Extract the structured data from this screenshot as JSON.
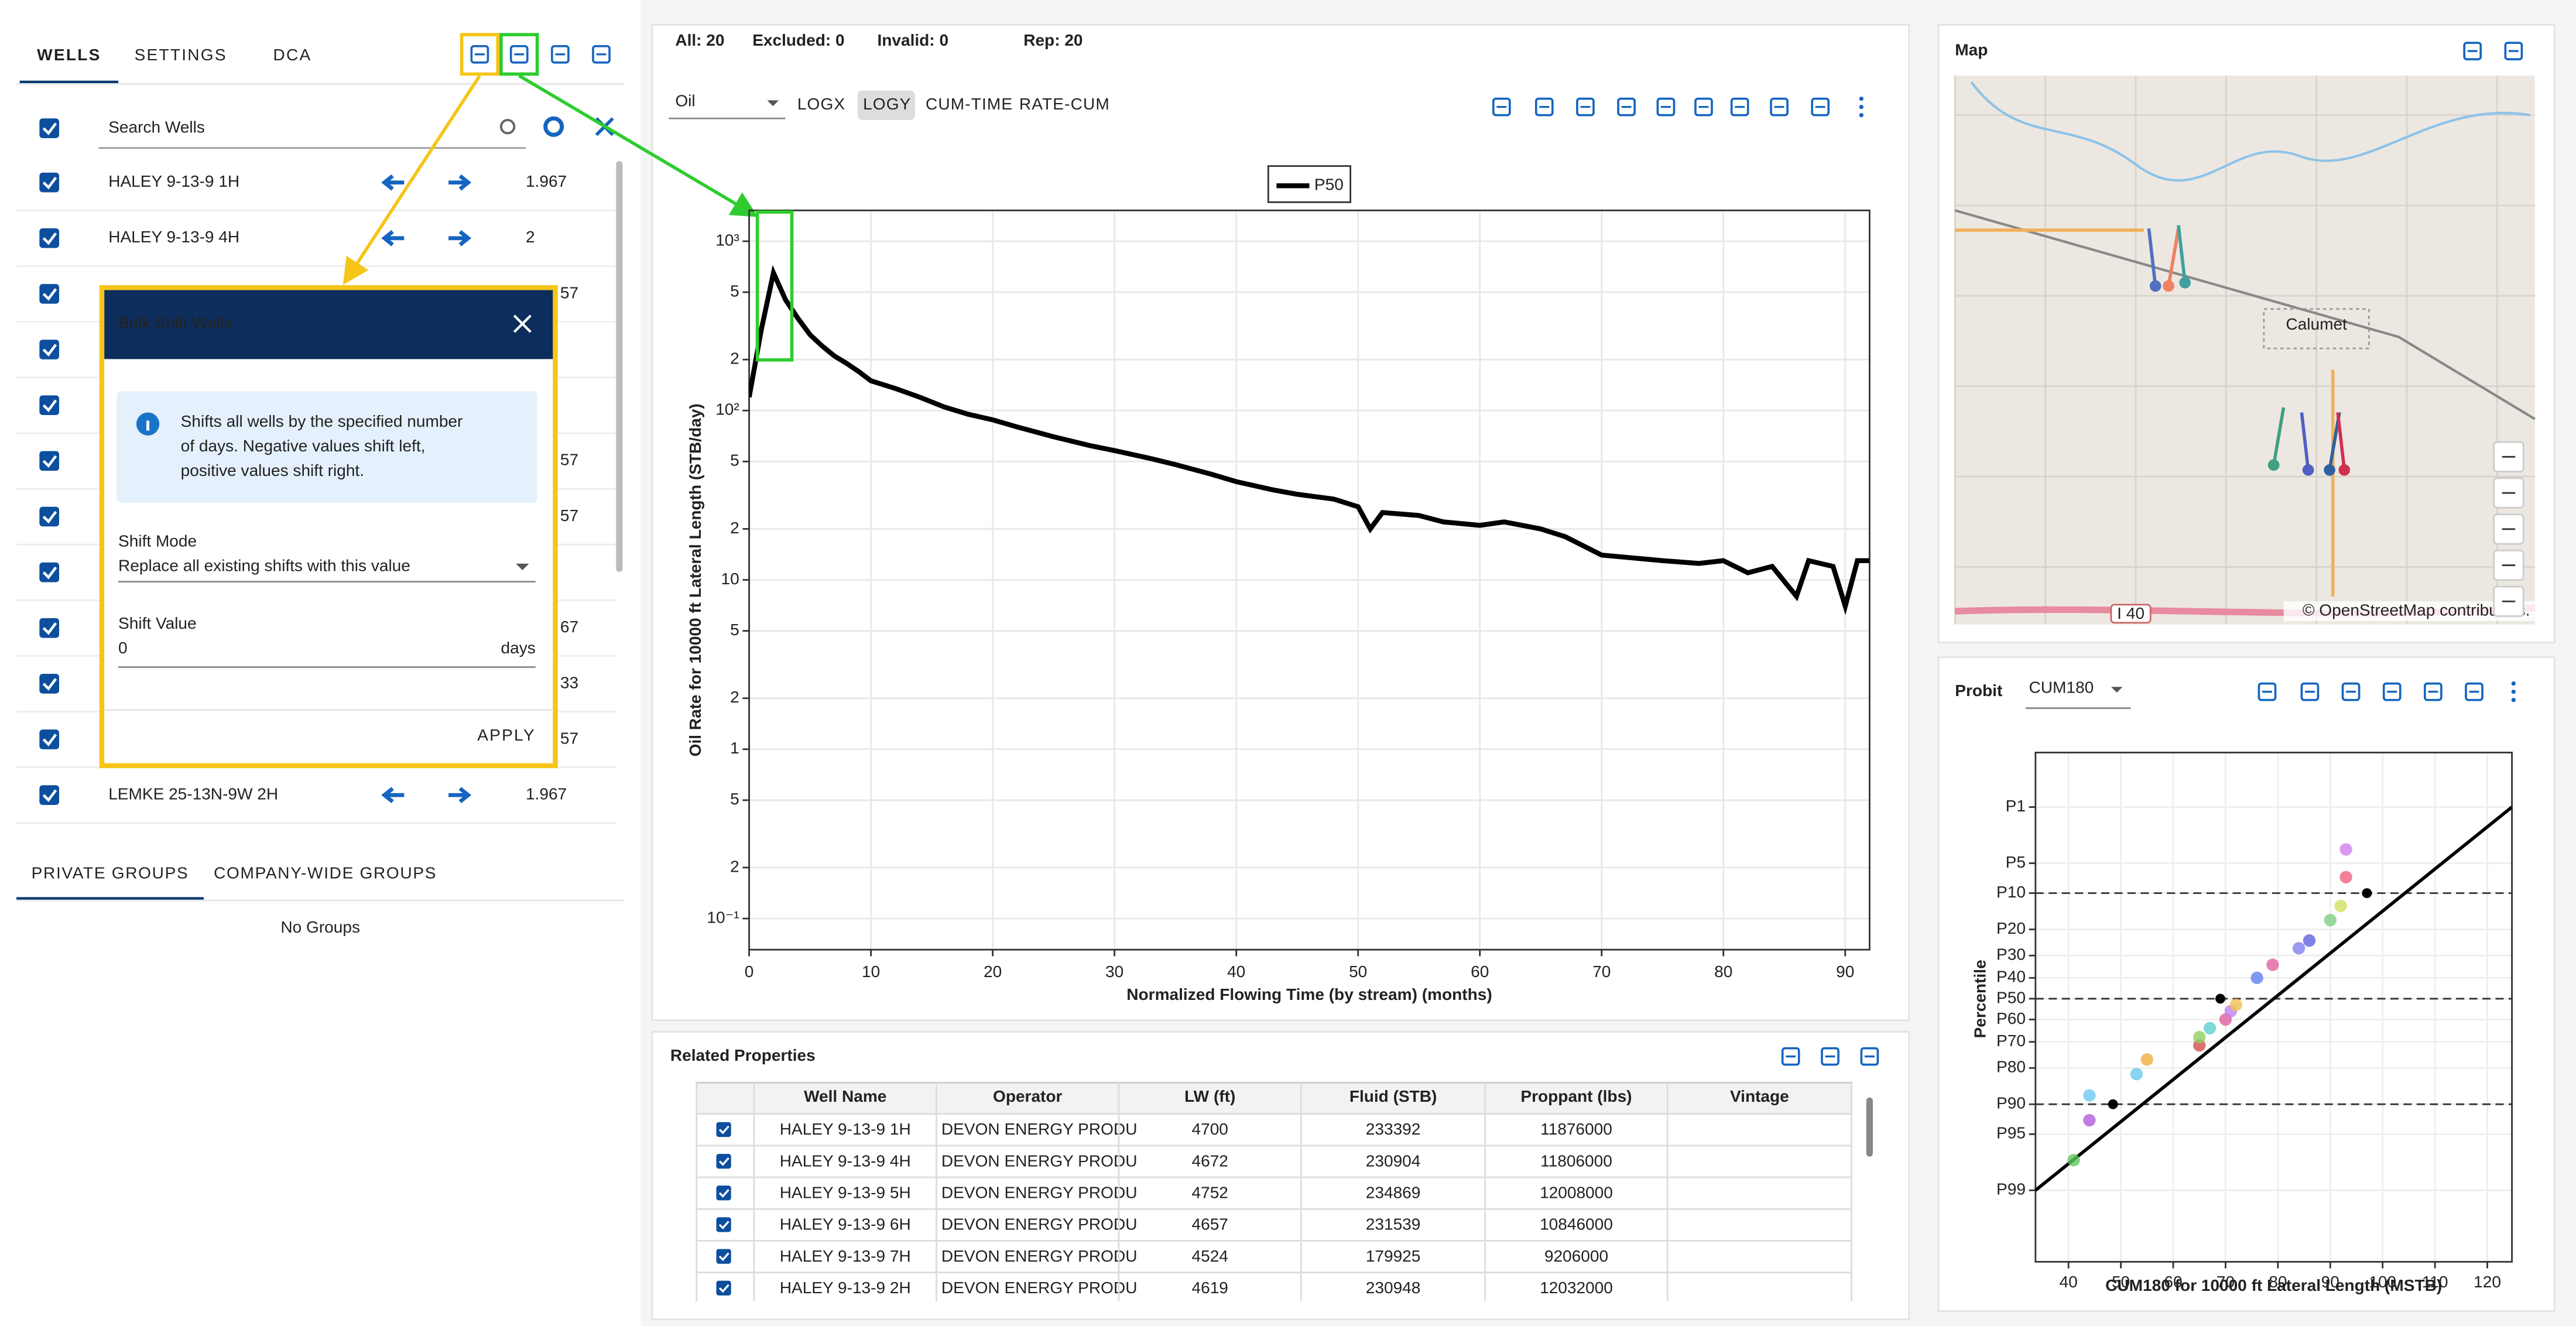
{
  "toolbar": {
    "stats": [
      "All: 20",
      "Excluded: 0",
      "Invalid: 0",
      "Rep: 20"
    ]
  },
  "left_panel": {
    "tabs": [
      "WELLS",
      "SETTINGS",
      "DCA"
    ],
    "active_tab": 0,
    "search_placeholder": "Search Wells",
    "wells": [
      {
        "name": "HALEY 9-13-9 1H",
        "value": "1.967"
      },
      {
        "name": "HALEY 9-13-9 4H",
        "value": "2"
      },
      {
        "name": null,
        "value": "57"
      },
      {
        "name": null,
        "value": null
      },
      {
        "name": null,
        "value": null
      },
      {
        "name": null,
        "value": "57"
      },
      {
        "name": null,
        "value": "57"
      },
      {
        "name": null,
        "value": null
      },
      {
        "name": null,
        "value": "67"
      },
      {
        "name": null,
        "value": "33"
      },
      {
        "name": null,
        "value": "57"
      },
      {
        "name": "LEMKE 25-13N-9W 2H",
        "value": "1.967"
      }
    ],
    "group_tabs": [
      "PRIVATE GROUPS",
      "COMPANY-WIDE GROUPS"
    ],
    "no_groups": "No Groups"
  },
  "dialog": {
    "title": "Bulk Shift Wells",
    "info": [
      "Shifts all wells by the specified number",
      "of days. Negative values shift left,",
      "positive values shift right."
    ],
    "shift_mode_label": "Shift Mode",
    "shift_mode": "Replace all existing shifts with this value",
    "shift_value_label": "Shift Value",
    "shift_value": "0",
    "unit": "days",
    "apply": "APPLY"
  },
  "chart_panel": {
    "stream": "Oil",
    "buttons": [
      "LOGX",
      "LOGY",
      "CUM-TIME",
      "RATE-CUM"
    ],
    "active_button": 1
  },
  "chart_data": [
    {
      "type": "line",
      "ylog": true,
      "grid": true,
      "legend_position": "top",
      "xlabel": "Normalized Flowing Time (by stream) (months)",
      "ylabel": "Oil Rate for 10000 ft Lateral Length (STB/day)",
      "x": [
        0,
        1,
        2,
        3,
        4,
        5,
        6,
        7,
        8,
        9,
        10,
        12,
        14,
        16,
        18,
        20,
        22,
        25,
        28,
        30,
        33,
        35,
        38,
        40,
        43,
        45,
        48,
        50,
        51,
        52,
        55,
        57,
        60,
        62,
        65,
        67,
        70,
        75,
        78,
        80,
        82,
        84,
        86,
        87,
        89,
        90,
        91,
        92
      ],
      "series": [
        {
          "name": "P50",
          "color": "#000000",
          "values": [
            120,
            300,
            650,
            450,
            350,
            280,
            240,
            210,
            190,
            170,
            150,
            135,
            120,
            105,
            95,
            88,
            80,
            70,
            62,
            58,
            52,
            48,
            42,
            38,
            34,
            32,
            30,
            27,
            20,
            25,
            24,
            22,
            21,
            22,
            20,
            18,
            14,
            13,
            12.5,
            13,
            11,
            12,
            8,
            13,
            12,
            7,
            13,
            13
          ]
        }
      ],
      "xlim": [
        0,
        92
      ],
      "xticks": [
        0,
        10,
        20,
        30,
        40,
        50,
        60,
        70,
        80,
        90
      ],
      "ylim": [
        0.0655,
        1520
      ],
      "yticks": [
        {
          "value": 1000,
          "label": "10³"
        },
        {
          "value": 500,
          "label": "5"
        },
        {
          "value": 200,
          "label": "2"
        },
        {
          "value": 100,
          "label": "10²"
        },
        {
          "value": 50,
          "label": "5"
        },
        {
          "value": 20,
          "label": "2"
        },
        10,
        5,
        2,
        1,
        {
          "value": 0.5,
          "label": "5"
        },
        {
          "value": 0.2,
          "label": "2"
        },
        {
          "value": 0.1,
          "label": "10⁻¹"
        }
      ]
    },
    {
      "type": "scatter",
      "title": "Probit",
      "selector": "CUM180",
      "xlabel": "CUM180 for 10000 ft Lateral Length (MSTB)",
      "ylabel": "Percentile",
      "grid": true,
      "x": [
        41,
        44,
        44,
        53,
        55,
        65,
        65,
        67,
        70,
        71,
        72,
        76,
        79,
        84,
        86,
        90,
        92,
        93,
        93
      ],
      "values": [
        97.5,
        93,
        88,
        82,
        77,
        71.5,
        68,
        64,
        60,
        56,
        53,
        40,
        34,
        27,
        24,
        17,
        13,
        7,
        3.5
      ],
      "colors": [
        "#5cc85c",
        "#b05cd8",
        "#6cc8f0",
        "#6cc8f0",
        "#f0b040",
        "#d05050",
        "#90d060",
        "#60d0d0",
        "#e060a0",
        "#c080f0",
        "#f0c050",
        "#6080f0",
        "#e060a0",
        "#8080f0",
        "#6060e0",
        "#80d080",
        "#d0e060",
        "#f06080",
        "#d080f0"
      ],
      "fit_line": {
        "x": [
          33.7,
          124.7
        ],
        "values": [
          99,
          1
        ]
      },
      "markers": {
        "x": [
          48.5,
          69,
          97
        ],
        "values": [
          90,
          50,
          10
        ]
      },
      "reference_lines": [
        10,
        50,
        90
      ],
      "xlim": [
        33.7,
        124.7
      ],
      "xticks": [
        40,
        50,
        60,
        70,
        80,
        90,
        100,
        110,
        120
      ],
      "ylim": [
        0.14,
        99.93
      ],
      "yticks": [
        {
          "value": 1,
          "label": "P1"
        },
        {
          "value": 5,
          "label": "P5"
        },
        {
          "value": 10,
          "label": "P10"
        },
        {
          "value": 20,
          "label": "P20"
        },
        {
          "value": 30,
          "label": "P30"
        },
        {
          "value": 40,
          "label": "P40"
        },
        {
          "value": 50,
          "label": "P50"
        },
        {
          "value": 60,
          "label": "P60"
        },
        {
          "value": 70,
          "label": "P70"
        },
        {
          "value": 80,
          "label": "P80"
        },
        {
          "value": 90,
          "label": "P90"
        },
        {
          "value": 95,
          "label": "P95"
        },
        {
          "value": 99,
          "label": "P99"
        }
      ]
    }
  ],
  "map": {
    "title": "Map",
    "town": "Calumet",
    "highway": "I 40",
    "attribution": "© OpenStreetMap contributors."
  },
  "table": {
    "title": "Related Properties",
    "headers": [
      "Well Name",
      "Operator",
      "LW (ft)",
      "Fluid (STB)",
      "Proppant (lbs)",
      "Vintage"
    ],
    "rows": [
      [
        "HALEY 9-13-9 1H",
        "DEVON ENERGY PRODU",
        4700,
        233392,
        11876000
      ],
      [
        "HALEY 9-13-9 4H",
        "DEVON ENERGY PRODU",
        4672,
        230904,
        11806000
      ],
      [
        "HALEY 9-13-9 5H",
        "DEVON ENERGY PRODU",
        4752,
        234869,
        12008000
      ],
      [
        "HALEY 9-13-9 6H",
        "DEVON ENERGY PRODU",
        4657,
        231539,
        10846000
      ],
      [
        "HALEY 9-13-9 7H",
        "DEVON ENERGY PRODU",
        4524,
        179925,
        9206000
      ],
      [
        "HALEY 9-13-9 2H",
        "DEVON ENERGY PRODU",
        4619,
        230948,
        12032000
      ]
    ]
  }
}
